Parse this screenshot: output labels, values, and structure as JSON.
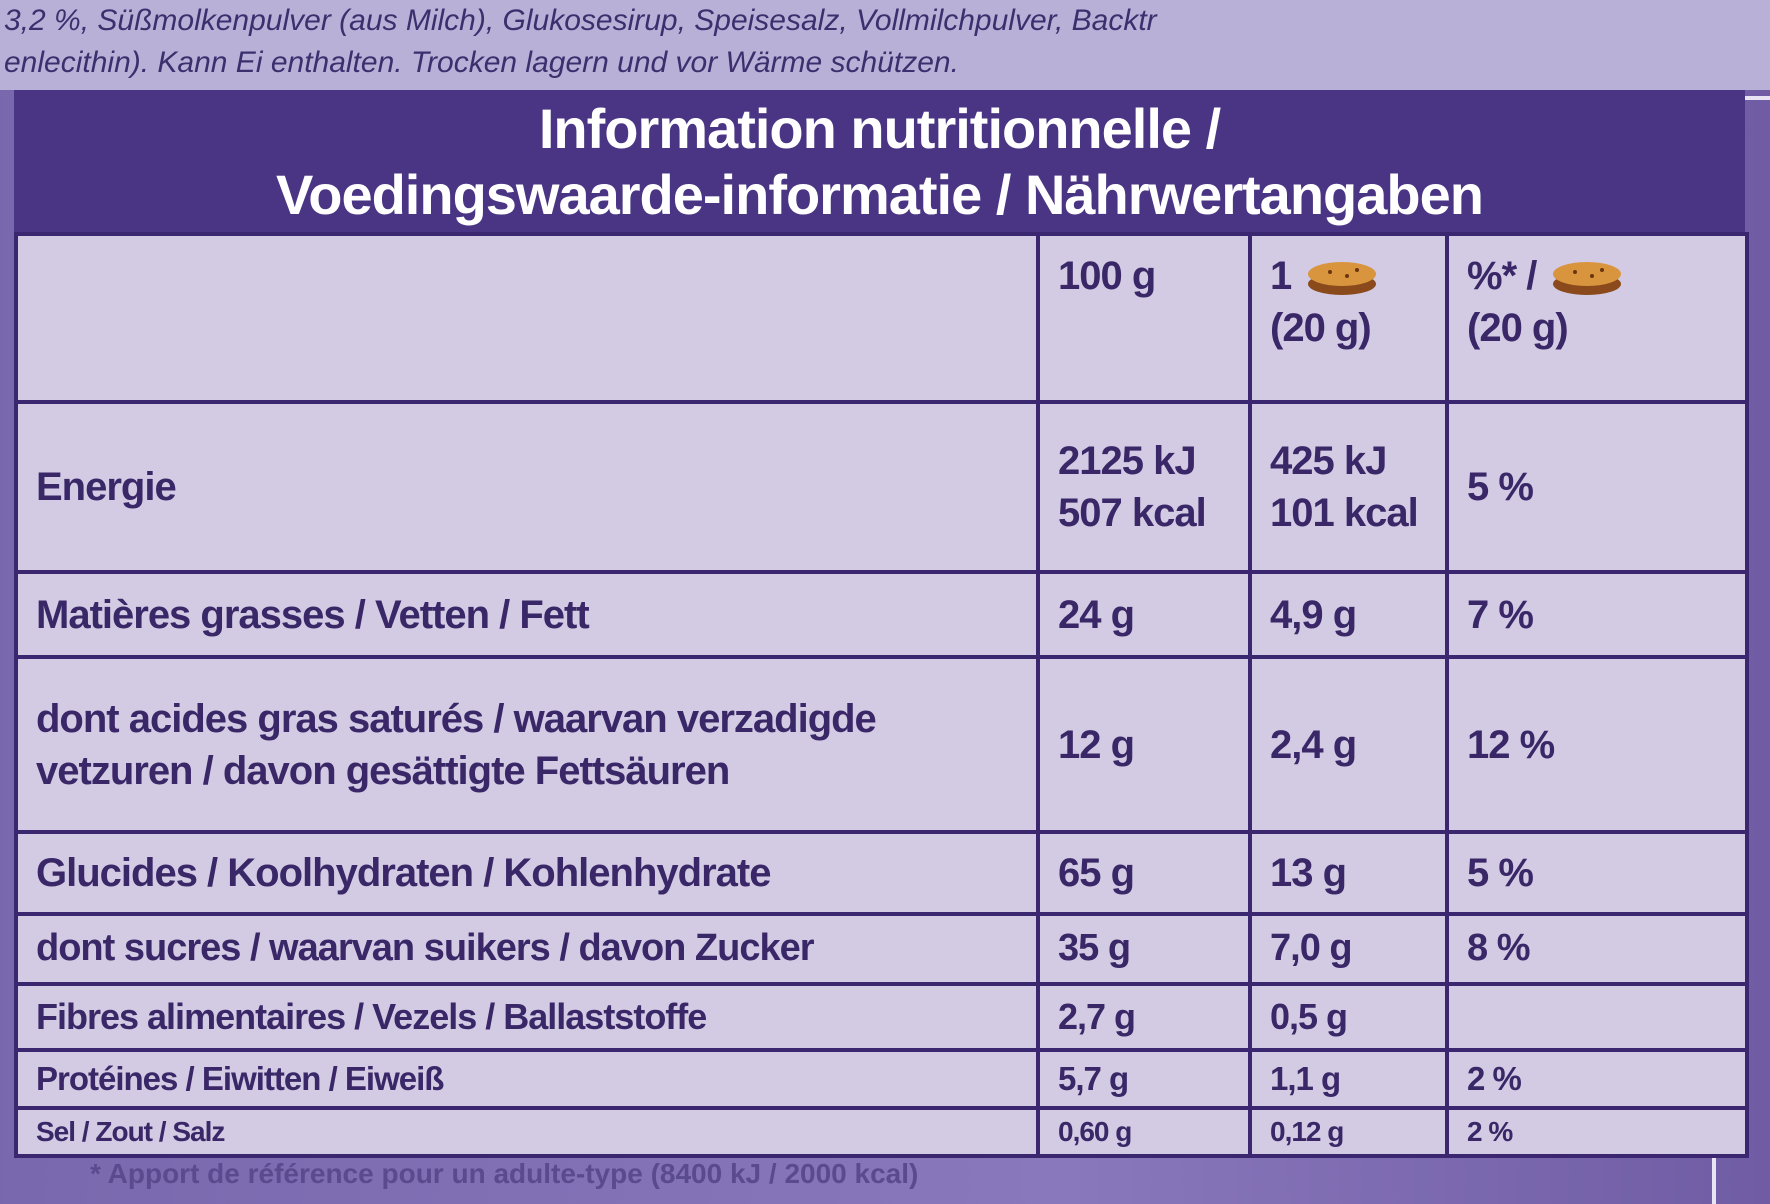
{
  "ingredients": [
    "3,2 %, Süßmolkenpulver (aus Milch), Glukosesirup, Speisesalz, Vollmilchpulver, Backtr",
    "enlecithin). Kann Ei enthalten. Trocken lagern und vor Wärme schützen."
  ],
  "header": {
    "title": [
      "Information nutritionnelle /",
      "Voedingswaarde-informatie / Nährwertangaben"
    ]
  },
  "table": {
    "columns": {
      "per_100g": "100 g",
      "per_portion": [
        "1",
        "(20 g)"
      ],
      "percent": [
        "%* /",
        "(20 g)"
      ]
    },
    "rows": [
      {
        "label": "Energie",
        "per_100g": [
          "2125 kJ",
          "507 kcal"
        ],
        "per_portion": [
          "425 kJ",
          "101 kcal"
        ],
        "percent": "5 %"
      },
      {
        "label": "Matières grasses / Vetten / Fett",
        "per_100g": "24 g",
        "per_portion": "4,9 g",
        "percent": "7 %"
      },
      {
        "label": [
          "dont acides gras saturés / waarvan verzadigde",
          "vetzuren / davon gesättigte Fettsäuren"
        ],
        "per_100g": "12 g",
        "per_portion": "2,4 g",
        "percent": "12 %"
      },
      {
        "label": "Glucides / Koolhydraten / Kohlenhydrate",
        "per_100g": "65 g",
        "per_portion": "13 g",
        "percent": "5 %"
      },
      {
        "label": "dont sucres / waarvan suikers / davon Zucker",
        "per_100g": "35 g",
        "per_portion": "7,0 g",
        "percent": "8 %"
      },
      {
        "label": "Fibres alimentaires / Vezels / Ballaststoffe",
        "per_100g": "2,7 g",
        "per_portion": "0,5 g"
      },
      {
        "label": "Protéines / Eiwitten / Eiweiß",
        "per_100g": "5,7 g",
        "per_portion": "1,1 g",
        "percent": "2 %"
      },
      {
        "label": "Sel / Zout / Salz",
        "per_100g": "0,60 g",
        "per_portion": "0,12 g",
        "percent": "2 %"
      }
    ]
  },
  "footnote": "* Apport de référence pour un adulte-type (8400 kJ / 2000 kcal)"
}
